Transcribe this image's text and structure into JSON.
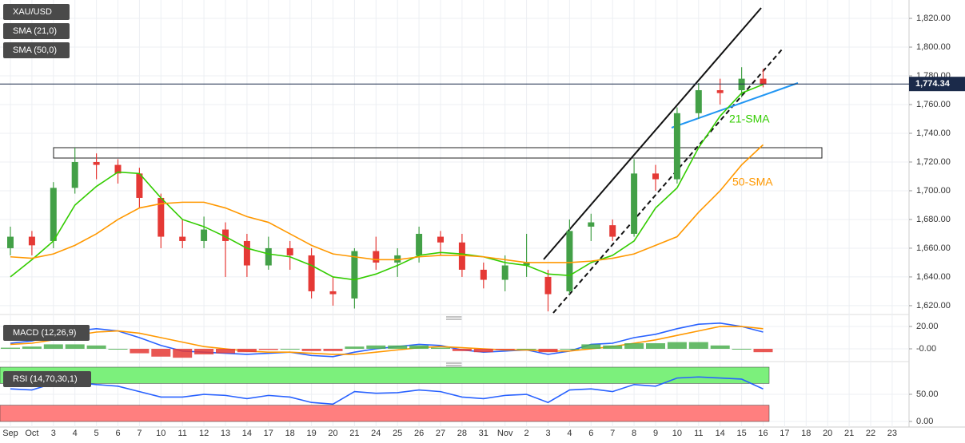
{
  "chart_data": [
    {
      "type": "candlestick",
      "categories": [
        "Sep",
        "Oct",
        "3",
        "4",
        "5",
        "6",
        "7",
        "10",
        "11",
        "12",
        "13",
        "14",
        "17",
        "18",
        "19",
        "20",
        "21",
        "24",
        "25",
        "26",
        "27",
        "28",
        "31",
        "Nov",
        "2",
        "3",
        "4",
        "6",
        "7",
        "8",
        "9",
        "10",
        "11",
        "14",
        "15",
        "16",
        "17",
        "18",
        "20",
        "21",
        "22",
        "23"
      ],
      "series": [
        {
          "name": "XAU/USD",
          "up_color": "#43a047",
          "down_color": "#e53935",
          "open": [
            1660,
            1668,
            1665,
            1702,
            1720,
            1718,
            1712,
            1695,
            1668,
            1665,
            1673,
            1665,
            1648,
            1660,
            1655,
            1630,
            1625,
            1658,
            1650,
            1655,
            1668,
            1664,
            1645,
            1638,
            1648,
            1640,
            1630,
            1675,
            1676,
            1670,
            1712,
            1708,
            1754,
            1770,
            1770,
            1778,
            null,
            null,
            null,
            null,
            null,
            null
          ],
          "high": [
            1675,
            1672,
            1706,
            1730,
            1726,
            1722,
            1716,
            1698,
            1680,
            1682,
            1678,
            1670,
            1668,
            1665,
            1660,
            1640,
            1660,
            1668,
            1660,
            1675,
            1672,
            1670,
            1650,
            1655,
            1670,
            1645,
            1680,
            1684,
            1680,
            1722,
            1718,
            1758,
            1775,
            1778,
            1786,
            1785,
            null,
            null,
            null,
            null,
            null,
            null
          ],
          "low": [
            1655,
            1655,
            1660,
            1698,
            1708,
            1705,
            1688,
            1660,
            1660,
            1660,
            1640,
            1640,
            1645,
            1645,
            1625,
            1620,
            1618,
            1645,
            1640,
            1650,
            1655,
            1640,
            1632,
            1630,
            1640,
            1616,
            1628,
            1665,
            1665,
            1668,
            1700,
            1705,
            1750,
            1760,
            1765,
            1772,
            null,
            null,
            null,
            null,
            null,
            null
          ],
          "close": [
            1668,
            1662,
            1702,
            1720,
            1718,
            1712,
            1695,
            1668,
            1665,
            1673,
            1665,
            1648,
            1660,
            1655,
            1630,
            1628,
            1658,
            1650,
            1655,
            1670,
            1664,
            1645,
            1638,
            1648,
            1650,
            1628,
            1672,
            1678,
            1668,
            1712,
            1708,
            1754,
            1770,
            1768,
            1778,
            1774,
            null,
            null,
            null,
            null,
            null,
            null
          ]
        },
        {
          "name": "SMA (21,0)",
          "color": "#33cc00",
          "values": [
            1640,
            1652,
            1665,
            1690,
            1703,
            1713,
            1712,
            1695,
            1680,
            1675,
            1668,
            1660,
            1656,
            1654,
            1648,
            1640,
            1638,
            1642,
            1648,
            1655,
            1657,
            1656,
            1654,
            1650,
            1648,
            1642,
            1641,
            1650,
            1655,
            1665,
            1688,
            1702,
            1730,
            1752,
            1768,
            1774,
            null,
            null,
            null,
            null,
            null,
            null
          ]
        },
        {
          "name": "SMA (50,0)",
          "color": "#ff9800",
          "values": [
            1654,
            1653,
            1656,
            1662,
            1670,
            1680,
            1688,
            1691,
            1692,
            1692,
            1688,
            1682,
            1678,
            1670,
            1662,
            1656,
            1654,
            1652,
            1652,
            1654,
            1655,
            1655,
            1654,
            1652,
            1650,
            1650,
            1650,
            1651,
            1653,
            1656,
            1662,
            1668,
            1685,
            1700,
            1718,
            1732,
            null,
            null,
            null,
            null,
            null,
            null
          ]
        }
      ],
      "ylim": [
        1614.4,
        1832.8
      ],
      "yticks": [
        {
          "value": 1620,
          "label": "1,620.00"
        },
        {
          "value": 1640,
          "label": "1,640.00"
        },
        {
          "value": 1660,
          "label": "1,660.00"
        },
        {
          "value": 1680,
          "label": "1,680.00"
        },
        {
          "value": 1700,
          "label": "1,700.00"
        },
        {
          "value": 1720,
          "label": "1,720.00"
        },
        {
          "value": 1740,
          "label": "1,740.00"
        },
        {
          "value": 1760,
          "label": "1,760.00"
        },
        {
          "value": 1780,
          "label": "1,780.00"
        },
        {
          "value": 1800,
          "label": "1,800.00"
        },
        {
          "value": 1820,
          "label": "1,820.00"
        }
      ],
      "last_price": {
        "value": 1774.34,
        "label": "1,774.34"
      },
      "annotations": [
        "21-SMA",
        "50-SMA"
      ],
      "grid": true
    },
    {
      "type": "macd",
      "title": "MACD (12,26,9)",
      "series": [
        {
          "name": "MACD",
          "color": "#2962ff",
          "values": [
            5,
            7,
            12,
            16,
            18,
            16,
            10,
            3,
            -2,
            -3,
            -4,
            -5,
            -4,
            -3,
            -6,
            -7,
            -3,
            0,
            2,
            4,
            3,
            -1,
            -3,
            -2,
            -1,
            -5,
            -2,
            4,
            5,
            10,
            13,
            18,
            22,
            23,
            20,
            15,
            null,
            null,
            null,
            null,
            null,
            null
          ]
        },
        {
          "name": "Signal",
          "color": "#ff9800",
          "values": [
            4,
            5,
            8,
            12,
            15,
            16,
            14,
            10,
            6,
            2,
            0,
            -2,
            -3,
            -3,
            -4,
            -5,
            -5,
            -3,
            -1,
            1,
            2,
            1,
            0,
            -1,
            -1,
            -2,
            -2,
            0,
            2,
            5,
            8,
            12,
            16,
            20,
            20,
            18,
            null,
            null,
            null,
            null,
            null,
            null
          ]
        },
        {
          "name": "Histogram",
          "up_color": "#4caf50",
          "down_color": "#e53935",
          "values": [
            1,
            2,
            4,
            4,
            3,
            0,
            -4,
            -7,
            -8,
            -5,
            -4,
            -3,
            -1,
            0,
            -2,
            -2,
            2,
            3,
            3,
            3,
            1,
            -2,
            -3,
            -1,
            0,
            -3,
            0,
            4,
            3,
            5,
            5,
            6,
            6,
            3,
            0,
            -3,
            null,
            null,
            null,
            null,
            null,
            null
          ]
        }
      ],
      "ylim": [
        -9.3,
        24.3
      ],
      "yticks": [
        {
          "value": 0,
          "label": "-0.00"
        },
        {
          "value": 20,
          "label": "20.00"
        }
      ]
    },
    {
      "type": "rsi",
      "title": "RSI (14,70,30,1)",
      "series": [
        {
          "name": "RSI",
          "color": "#2962ff",
          "values": [
            60,
            58,
            70,
            72,
            68,
            65,
            55,
            45,
            45,
            50,
            48,
            42,
            48,
            45,
            35,
            32,
            55,
            52,
            53,
            58,
            55,
            45,
            42,
            48,
            50,
            35,
            58,
            60,
            55,
            68,
            65,
            80,
            82,
            80,
            78,
            60,
            null,
            null,
            null,
            null,
            null,
            null
          ]
        }
      ],
      "zones": [
        {
          "from": 70,
          "to": 100,
          "color": "#7cf07c"
        },
        {
          "from": 0,
          "to": 30,
          "color": "#ff7f7f"
        }
      ],
      "ylim": [
        -2.9,
        100
      ],
      "yticks": [
        {
          "value": 0,
          "label": "0.00"
        },
        {
          "value": 50,
          "label": "50.00"
        }
      ]
    }
  ]
}
